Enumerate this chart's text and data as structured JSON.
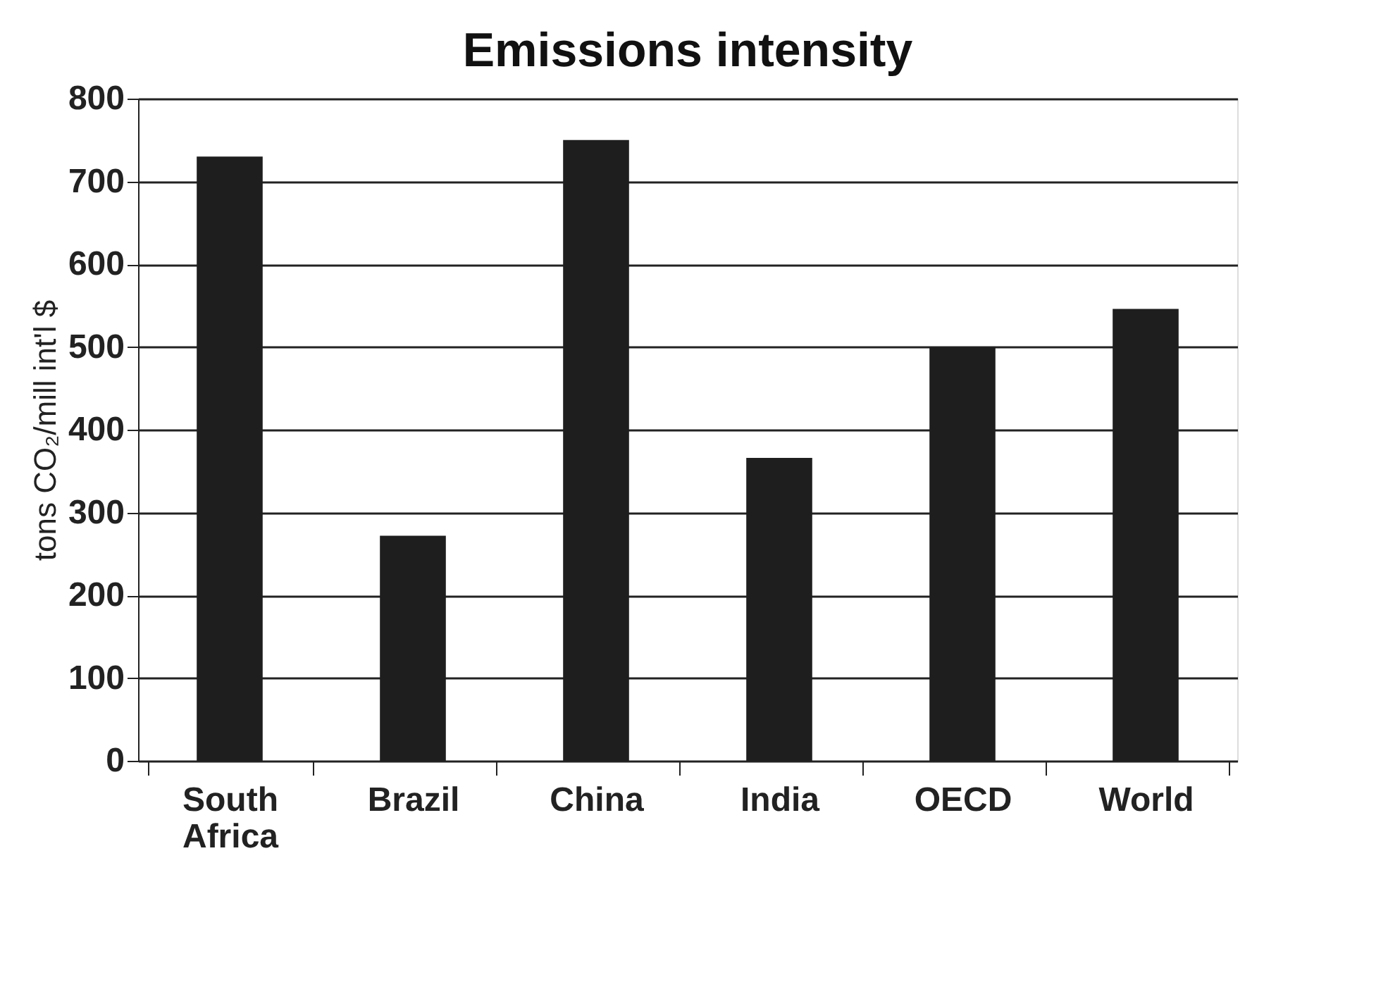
{
  "chart_data": {
    "type": "bar",
    "title": "Emissions intensity",
    "ylabel": "tons CO₂/mill int'l $",
    "categories": [
      "South Africa",
      "Brazil",
      "China",
      "India",
      "OECD",
      "World"
    ],
    "values": [
      730,
      272,
      750,
      366,
      500,
      546
    ],
    "color": "#1e1e1e",
    "ylim": [
      0,
      800
    ],
    "yticks": [
      0,
      100,
      200,
      300,
      400,
      500,
      600,
      700,
      800
    ],
    "grid": "y"
  }
}
